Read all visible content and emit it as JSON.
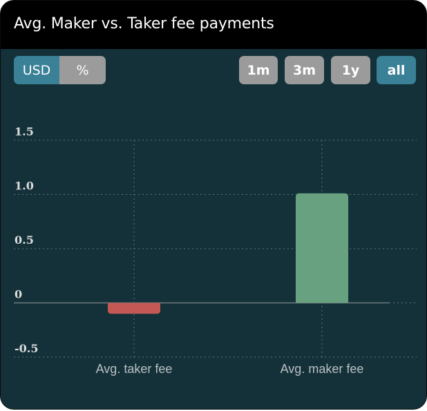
{
  "header": {
    "title": "Avg. Maker vs. Taker fee payments"
  },
  "controls": {
    "unit_toggle": [
      {
        "label": "USD",
        "active": true
      },
      {
        "label": "%",
        "active": false
      }
    ],
    "range_buttons": [
      {
        "label": "1m",
        "active": false
      },
      {
        "label": "3m",
        "active": false
      },
      {
        "label": "1y",
        "active": false
      },
      {
        "label": "all",
        "active": true
      }
    ]
  },
  "colors": {
    "background": "#14313a",
    "header": "#000000",
    "active_button": "#3a8197",
    "inactive_button": "#9b9b9b",
    "negative_bar": "#c45855",
    "positive_bar": "#68a180",
    "grid": "#5f7479",
    "zero_line": "#6f7a7d"
  },
  "chart_data": {
    "type": "bar",
    "categories": [
      "Avg. taker fee",
      "Avg. maker fee"
    ],
    "values": [
      -0.1,
      1.01
    ],
    "ylim": [
      -0.5,
      1.5
    ],
    "yticks": [
      -0.5,
      0,
      0.5,
      1.0,
      1.5
    ],
    "ytick_labels": [
      "-0.5",
      "0",
      "0.5",
      "1.0",
      "1.5"
    ],
    "grid": true,
    "bar_colors": [
      "#c45855",
      "#68a180"
    ]
  }
}
